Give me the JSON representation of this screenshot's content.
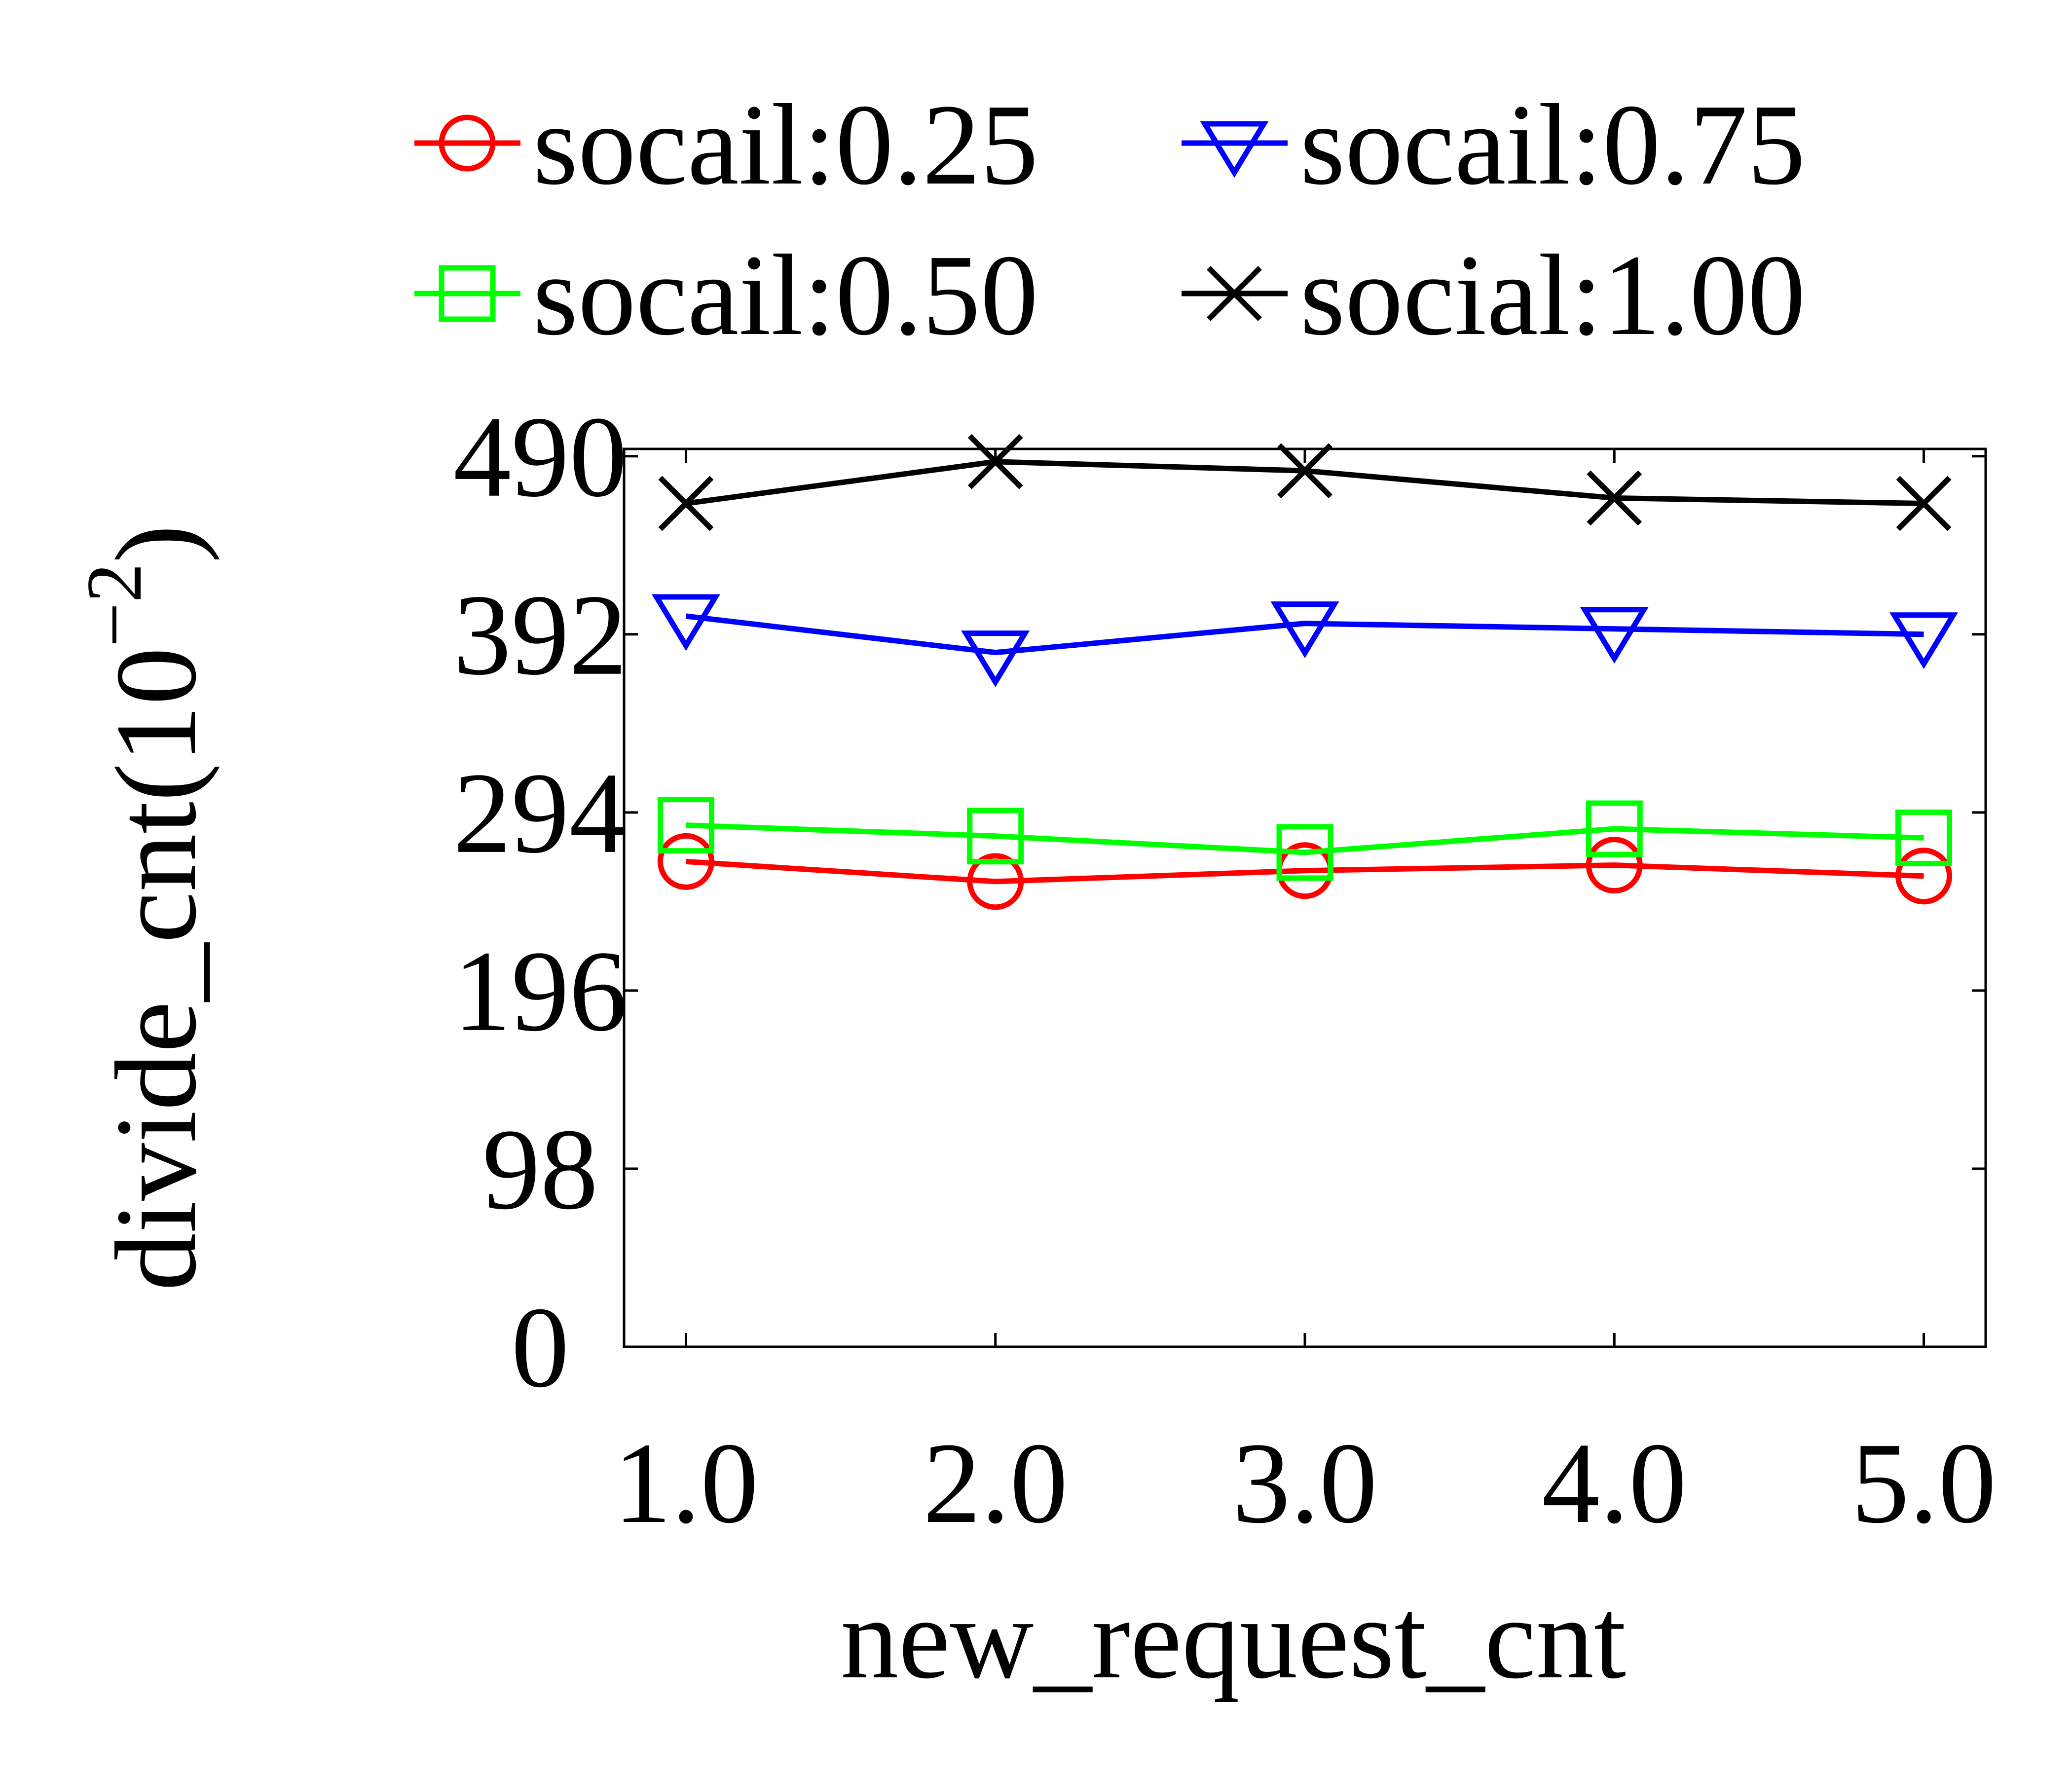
{
  "chart_data": {
    "type": "line",
    "xlabel": "new_request_cnt",
    "ylabel_main": "divide_cnt(10",
    "ylabel_sup": "−2",
    "ylabel_close": ")",
    "x": [
      1.0,
      2.0,
      3.0,
      4.0,
      5.0
    ],
    "x_tick_labels": [
      "1.0",
      "2.0",
      "3.0",
      "4.0",
      "5.0"
    ],
    "y_ticks": [
      0,
      98,
      196,
      294,
      392,
      490
    ],
    "y_tick_labels": [
      "0",
      "98",
      "196",
      "294",
      "392",
      "490"
    ],
    "xlim": [
      0.8,
      5.2
    ],
    "ylim": [
      0,
      494
    ],
    "legend_position": "top",
    "series": [
      {
        "name": "socail:0.25",
        "color": "#ff0000",
        "marker": "circle",
        "values": [
          267,
          256,
          262,
          265,
          259
        ]
      },
      {
        "name": "socail:0.50",
        "color": "#00ff00",
        "marker": "square",
        "values": [
          287,
          281,
          272,
          285,
          280
        ]
      },
      {
        "name": "socail:0.75",
        "color": "#0000ff",
        "marker": "triangle-down",
        "values": [
          402,
          382,
          398,
          395,
          392
        ]
      },
      {
        "name": "social:1.00",
        "color": "#000000",
        "marker": "x",
        "values": [
          464,
          487,
          482,
          467,
          464
        ]
      }
    ]
  }
}
